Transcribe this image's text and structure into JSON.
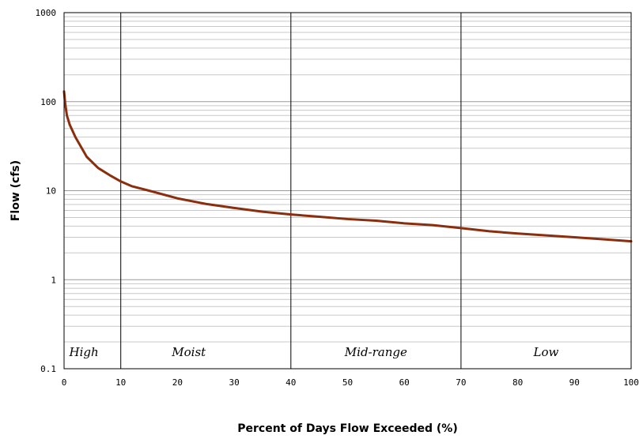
{
  "chart_data": {
    "type": "line",
    "xlabel": "Percent of Days Flow Exceeded (%)",
    "ylabel": "Flow (cfs)",
    "xlim": [
      0,
      100
    ],
    "ylim": [
      0.1,
      1000
    ],
    "yscale": "log",
    "x_ticks": [
      "0",
      "10",
      "20",
      "30",
      "40",
      "50",
      "60",
      "70",
      "80",
      "90",
      "100"
    ],
    "y_ticks": [
      "0.1",
      "1",
      "10",
      "100",
      "1000"
    ],
    "grid": true,
    "line_color": "#8B2E0E",
    "zone_dividers": [
      10,
      40,
      70
    ],
    "zones": [
      {
        "label": "High",
        "x": 3.5
      },
      {
        "label": "Moist",
        "x": 22
      },
      {
        "label": "Mid-range",
        "x": 55
      },
      {
        "label": "Low",
        "x": 85
      }
    ],
    "series": [
      {
        "points": [
          [
            0,
            130
          ],
          [
            0.2,
            95
          ],
          [
            0.5,
            70
          ],
          [
            1,
            55
          ],
          [
            2,
            40
          ],
          [
            3,
            31
          ],
          [
            4,
            24
          ],
          [
            6,
            18
          ],
          [
            8,
            15
          ],
          [
            10,
            12.7
          ],
          [
            12,
            11.2
          ],
          [
            15,
            10
          ],
          [
            20,
            8.2
          ],
          [
            25,
            7.1
          ],
          [
            30,
            6.4
          ],
          [
            35,
            5.8
          ],
          [
            40,
            5.4
          ],
          [
            45,
            5.1
          ],
          [
            50,
            4.8
          ],
          [
            55,
            4.6
          ],
          [
            60,
            4.3
          ],
          [
            65,
            4.1
          ],
          [
            70,
            3.8
          ],
          [
            75,
            3.5
          ],
          [
            80,
            3.3
          ],
          [
            85,
            3.15
          ],
          [
            90,
            3.0
          ],
          [
            95,
            2.85
          ],
          [
            100,
            2.7
          ]
        ]
      }
    ]
  }
}
